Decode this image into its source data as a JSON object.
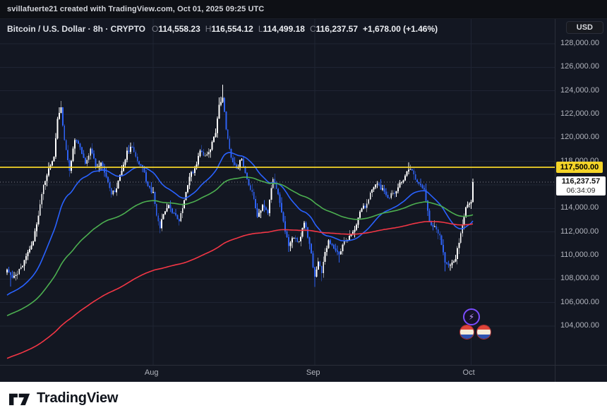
{
  "header": {
    "attribution": "svillafuerte21 created with TradingView.com, Oct 01, 2025 09:25 UTC"
  },
  "legend": {
    "title": "Bitcoin / U.S. Dollar · 8h · CRYPTO",
    "o_label": "O",
    "o_value": "114,558.23",
    "h_label": "H",
    "h_value": "116,554.12",
    "l_label": "L",
    "l_value": "114,499.18",
    "c_label": "C",
    "c_value": "116,237.57",
    "change": "+1,678.00 (+1.46%)"
  },
  "currency_button": {
    "label": "USD"
  },
  "price_axis": {
    "labels": [
      "128,000.00",
      "126,000.00",
      "124,000.00",
      "122,000.00",
      "120,000.00",
      "118,000.00",
      "116,000.00",
      "114,000.00",
      "112,000.00",
      "110,000.00",
      "108,000.00",
      "106,000.00",
      "104,000.00"
    ]
  },
  "level_label": {
    "text": "117,500.00"
  },
  "last_price_label": {
    "text": "116,237.57",
    "countdown": "06:34:09"
  },
  "footer": {
    "brand": "TradingView"
  },
  "stickers": {
    "bolt_glyph": "⚡"
  },
  "chart_data": {
    "type": "candlestick",
    "title": "Bitcoin / U.S. Dollar",
    "interval": "8h",
    "exchange": "CRYPTO",
    "current_candle": {
      "open": 114558.23,
      "high": 116554.12,
      "low": 114499.18,
      "close": 116237.57,
      "change": 1678.0,
      "change_pct": 1.46
    },
    "y_range": [
      100700,
      130100
    ],
    "price_gridlines": [
      128000,
      126000,
      124000,
      122000,
      120000,
      118000,
      116000,
      114000,
      112000,
      110000,
      108000,
      106000,
      104000
    ],
    "month_ticks": [
      {
        "label": "Aug",
        "i": 84
      },
      {
        "label": "Sep",
        "i": 177
      },
      {
        "label": "Oct",
        "i": 267
      }
    ],
    "candles_total": 269,
    "seed": 11,
    "noise": 420,
    "wick": 480,
    "waypoints": [
      [
        0,
        108800
      ],
      [
        3,
        108100
      ],
      [
        6,
        108400
      ],
      [
        10,
        109600
      ],
      [
        15,
        111200
      ],
      [
        18,
        113400
      ],
      [
        21,
        116000
      ],
      [
        24,
        117400
      ],
      [
        27,
        118400
      ],
      [
        29,
        121600
      ],
      [
        31,
        122600
      ],
      [
        33,
        119800
      ],
      [
        36,
        117200
      ],
      [
        39,
        119800
      ],
      [
        42,
        119200
      ],
      [
        45,
        117800
      ],
      [
        48,
        119100
      ],
      [
        51,
        117500
      ],
      [
        54,
        117900
      ],
      [
        57,
        116700
      ],
      [
        60,
        115200
      ],
      [
        63,
        115700
      ],
      [
        66,
        117200
      ],
      [
        69,
        118900
      ],
      [
        72,
        119200
      ],
      [
        75,
        118000
      ],
      [
        78,
        117500
      ],
      [
        81,
        115900
      ],
      [
        84,
        115400
      ],
      [
        86,
        113400
      ],
      [
        88,
        112300
      ],
      [
        90,
        113500
      ],
      [
        93,
        114300
      ],
      [
        96,
        113600
      ],
      [
        99,
        112900
      ],
      [
        102,
        114700
      ],
      [
        105,
        116700
      ],
      [
        108,
        117400
      ],
      [
        111,
        118900
      ],
      [
        114,
        118500
      ],
      [
        117,
        119000
      ],
      [
        120,
        120400
      ],
      [
        122,
        122800
      ],
      [
        124,
        123400
      ],
      [
        126,
        120700
      ],
      [
        129,
        118300
      ],
      [
        132,
        117400
      ],
      [
        135,
        118200
      ],
      [
        138,
        116500
      ],
      [
        141,
        115400
      ],
      [
        144,
        113300
      ],
      [
        147,
        114300
      ],
      [
        150,
        113600
      ],
      [
        153,
        116500
      ],
      [
        156,
        115200
      ],
      [
        159,
        112900
      ],
      [
        162,
        110800
      ],
      [
        165,
        111500
      ],
      [
        168,
        111200
      ],
      [
        171,
        112800
      ],
      [
        174,
        111000
      ],
      [
        176,
        109000
      ],
      [
        177,
        108200
      ],
      [
        179,
        109500
      ],
      [
        181,
        108500
      ],
      [
        183,
        110300
      ],
      [
        185,
        111300
      ],
      [
        188,
        110600
      ],
      [
        191,
        110100
      ],
      [
        194,
        111200
      ],
      [
        198,
        111800
      ],
      [
        201,
        112600
      ],
      [
        204,
        114000
      ],
      [
        207,
        114400
      ],
      [
        210,
        115600
      ],
      [
        213,
        116100
      ],
      [
        216,
        115700
      ],
      [
        219,
        114900
      ],
      [
        222,
        115300
      ],
      [
        225,
        115800
      ],
      [
        228,
        116400
      ],
      [
        231,
        117300
      ],
      [
        234,
        116900
      ],
      [
        237,
        116100
      ],
      [
        240,
        115600
      ],
      [
        243,
        112900
      ],
      [
        246,
        112500
      ],
      [
        249,
        111700
      ],
      [
        252,
        109400
      ],
      [
        255,
        109200
      ],
      [
        258,
        109700
      ],
      [
        261,
        111900
      ],
      [
        264,
        114100
      ],
      [
        266,
        114400
      ],
      [
        267,
        114558.23
      ],
      [
        268,
        116237.57
      ]
    ],
    "extremes": {
      "highs": [
        [
          31,
          123150
        ],
        [
          122,
          123450
        ],
        [
          124,
          124520
        ],
        [
          231,
          117920
        ]
      ],
      "lows": [
        [
          2,
          107350
        ],
        [
          88,
          111900
        ],
        [
          99,
          112550
        ],
        [
          162,
          110300
        ],
        [
          177,
          107320
        ],
        [
          181,
          107820
        ],
        [
          191,
          109400
        ],
        [
          252,
          108640
        ],
        [
          255,
          108700
        ]
      ]
    },
    "ma_lines": [
      {
        "name": "ma-fast-blue",
        "color": "#2962ff",
        "alpha": 0.055,
        "seed": 106500
      },
      {
        "name": "ma-mid-green",
        "color": "#4caf50",
        "alpha": 0.02,
        "seed": 104800
      },
      {
        "name": "ma-slow-red",
        "color": "#f23645",
        "alpha": 0.008,
        "seed": 101200
      }
    ],
    "levels": {
      "yellow_line": 117500,
      "last_price": 116237.57
    },
    "colors": {
      "up": "#ffffff",
      "down": "#2e62f4",
      "grid": "#1f2433",
      "axis_text": "#b2b5be",
      "level_yellow": "#f5d428",
      "dotted": "#8a8d97",
      "background": "#131722"
    }
  }
}
